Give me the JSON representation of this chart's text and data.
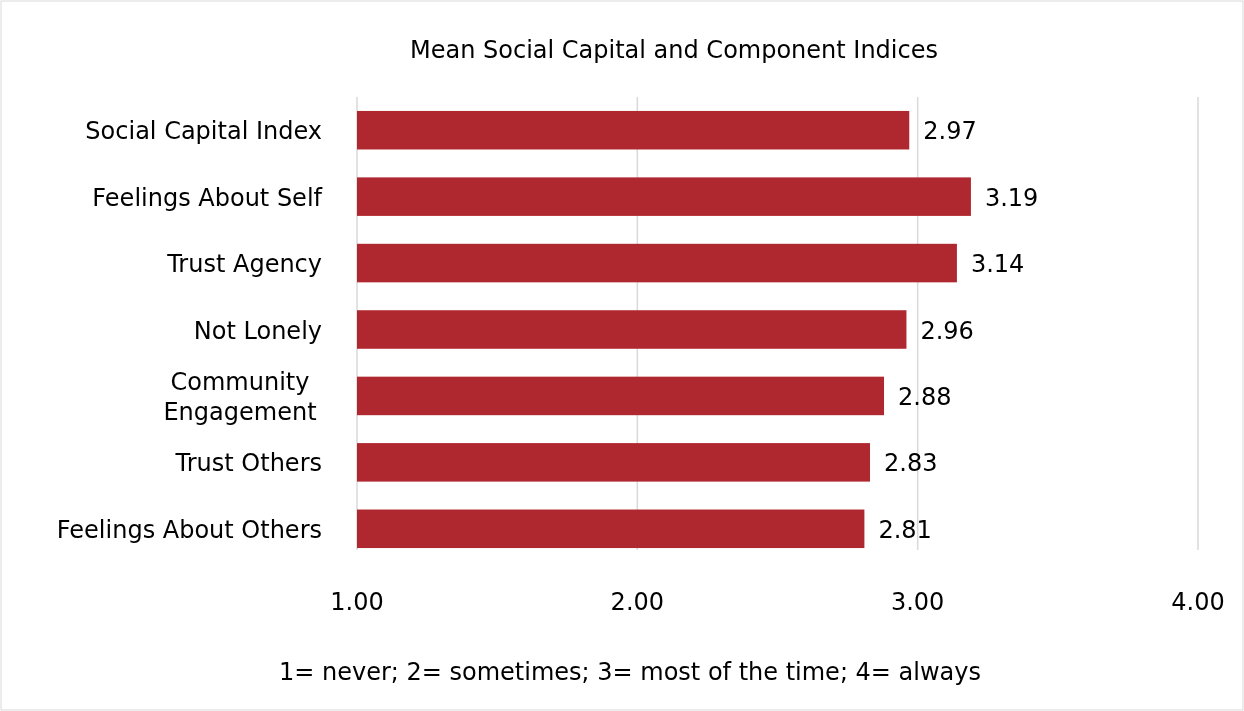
{
  "chart_data": {
    "type": "bar",
    "orientation": "horizontal",
    "title": "Mean Social Capital and Component Indices",
    "categories": [
      "Social Capital Index",
      "Feelings About Self",
      "Trust Agency",
      "Not Lonely",
      "Community\nEngagement",
      "Trust Others",
      "Feelings About Others"
    ],
    "values": [
      2.97,
      3.19,
      3.14,
      2.96,
      2.88,
      2.83,
      2.81
    ],
    "color": "#b0282f",
    "xlim": [
      1,
      4
    ],
    "xticks": [
      {
        "value": 1,
        "label": "1.00"
      },
      {
        "value": 2,
        "label": "2.00"
      },
      {
        "value": 3,
        "label": "3.00"
      },
      {
        "value": 4,
        "label": "4.00"
      }
    ],
    "grid": "x",
    "data_labels": true,
    "annotations": [
      "1= never; 2= sometimes; 3= most of the time; 4= always"
    ]
  }
}
